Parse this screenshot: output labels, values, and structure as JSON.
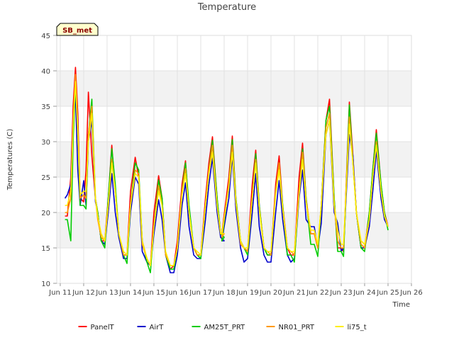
{
  "chart_data": {
    "type": "line",
    "title": "Temperature",
    "xlabel": "Time",
    "ylabel": "Temperatures (C)",
    "ylim": [
      10,
      45
    ],
    "yticks": [
      10,
      15,
      20,
      25,
      30,
      35,
      40,
      45
    ],
    "xlim": [
      10.85,
      26.0
    ],
    "xticks": [
      {
        "day": 11,
        "label": "Jun 11"
      },
      {
        "day": 12,
        "label": "Jun 12"
      },
      {
        "day": 13,
        "label": "Jun 13"
      },
      {
        "day": 14,
        "label": "Jun 14"
      },
      {
        "day": 15,
        "label": "Jun 15"
      },
      {
        "day": 16,
        "label": "Jun 16"
      },
      {
        "day": 17,
        "label": "Jun 17"
      },
      {
        "day": 18,
        "label": "Jun 18"
      },
      {
        "day": 19,
        "label": "Jun 19"
      },
      {
        "day": 20,
        "label": "Jun 20"
      },
      {
        "day": 21,
        "label": "Jun 21"
      },
      {
        "day": 22,
        "label": "Jun 22"
      },
      {
        "day": 23,
        "label": "Jun 23"
      },
      {
        "day": 24,
        "label": "Jun 24"
      },
      {
        "day": 25,
        "label": "Jun 25"
      },
      {
        "day": 26,
        "label": "Jun 26"
      }
    ],
    "badge": "SB_met",
    "grid": true,
    "legend_position": "bottom",
    "x": [
      11.2,
      11.3,
      11.45,
      11.55,
      11.65,
      11.75,
      11.85,
      12.0,
      12.1,
      12.2,
      12.35,
      12.5,
      12.6,
      12.75,
      12.9,
      13.05,
      13.2,
      13.35,
      13.5,
      13.7,
      13.85,
      14.0,
      14.2,
      14.35,
      14.5,
      14.7,
      14.85,
      15.0,
      15.2,
      15.35,
      15.5,
      15.7,
      15.85,
      16.0,
      16.2,
      16.35,
      16.5,
      16.7,
      16.85,
      17.0,
      17.2,
      17.35,
      17.5,
      17.7,
      17.85,
      18.0,
      17.9,
      18.2,
      18.35,
      18.5,
      18.7,
      18.85,
      19.0,
      19.2,
      19.35,
      19.5,
      19.7,
      19.85,
      20.0,
      20.2,
      20.35,
      20.5,
      20.7,
      20.85,
      21.0,
      21.2,
      21.35,
      21.5,
      21.7,
      21.85,
      22.0,
      22.15,
      22.35,
      22.5,
      22.7,
      22.85,
      23.0,
      23.1,
      23.35,
      23.5,
      23.65,
      23.85,
      24.0,
      24.2,
      24.35,
      24.5,
      24.7,
      24.85,
      25.0
    ],
    "series": [
      {
        "name": "PanelT",
        "color": "#ff0000",
        "values": [
          19.5,
          19.5,
          25,
          35,
          40.5,
          34,
          22,
          21.5,
          26,
          37,
          28,
          22,
          20,
          16,
          16,
          22,
          29.5,
          23,
          17,
          14,
          14,
          23,
          27.8,
          25,
          16,
          13.5,
          12.5,
          20,
          25.2,
          22,
          14,
          12,
          12.5,
          16,
          24,
          27.3,
          20,
          15,
          14,
          14,
          22,
          27,
          30.7,
          22,
          17,
          17,
          17,
          25,
          30.8,
          22,
          16,
          15,
          14.5,
          24,
          28.8,
          21,
          15,
          14,
          14,
          24,
          28,
          21,
          15,
          14,
          14,
          25,
          29.8,
          22,
          17,
          17,
          15,
          21,
          33,
          36,
          22,
          15,
          15,
          14.5,
          35.6,
          28,
          20,
          15,
          15,
          20,
          26,
          31.7,
          24,
          20,
          18
        ]
      },
      {
        "name": "AirT",
        "color": "#0000cc",
        "values": [
          22,
          22.5,
          24,
          33,
          36.5,
          26,
          21,
          24.5,
          21,
          30,
          33,
          21.5,
          20,
          16,
          15.5,
          20,
          25.5,
          20,
          16.5,
          13.5,
          13.5,
          20,
          25,
          24,
          14.5,
          13,
          12.5,
          17,
          21.8,
          19,
          14,
          11.5,
          11.5,
          14,
          21,
          24.2,
          18,
          14,
          13.5,
          13.5,
          19,
          24,
          27.7,
          20,
          16.5,
          16,
          16,
          22,
          28,
          20.5,
          15,
          13,
          13.5,
          20,
          25.5,
          18,
          14,
          13,
          13,
          20,
          24.5,
          19,
          14,
          13,
          13.5,
          22,
          26,
          19,
          18,
          18,
          15,
          18.5,
          31,
          33,
          20,
          18.5,
          14.5,
          15,
          31,
          28,
          20,
          15,
          15,
          18,
          23,
          28.8,
          22,
          19,
          18
        ]
      },
      {
        "name": "AM25T_PRT",
        "color": "#00cc00",
        "values": [
          19,
          19,
          16,
          30,
          38,
          32,
          21,
          21,
          20.5,
          31,
          36,
          22,
          20,
          16,
          15,
          22,
          29,
          24,
          17,
          14,
          12.8,
          21,
          27,
          26,
          16,
          13,
          11.5,
          18,
          24.6,
          22,
          14,
          12,
          12,
          15,
          23,
          27,
          21,
          15,
          14,
          13.5,
          21,
          26,
          30.2,
          22,
          17,
          16.5,
          16,
          24,
          30.3,
          22,
          16,
          15,
          14,
          22,
          28.3,
          21,
          15,
          14,
          14,
          23,
          27,
          21,
          14,
          14,
          13,
          23,
          29,
          22,
          15.5,
          15.5,
          13.8,
          21,
          33,
          35,
          22,
          14.5,
          14.5,
          13.8,
          35.2,
          27,
          20,
          15,
          14.5,
          20,
          26,
          31.2,
          24,
          20,
          17.5
        ]
      },
      {
        "name": "NR01_PRT",
        "color": "#ff9900",
        "values": [
          20,
          20,
          22,
          33,
          39.5,
          32,
          22,
          22.5,
          22,
          31,
          35,
          22,
          19,
          16.5,
          16,
          21,
          27.5,
          23,
          17,
          14,
          14,
          21,
          26,
          25.5,
          15.5,
          13.5,
          12.5,
          18,
          23.8,
          21,
          14,
          12.5,
          12.5,
          15,
          23,
          26.2,
          20,
          15,
          14,
          14,
          21,
          26,
          29.5,
          21,
          17,
          17,
          16.5,
          24,
          29.5,
          21.5,
          15.5,
          15,
          14.5,
          22,
          27.5,
          20.5,
          15,
          14.5,
          14,
          23,
          27,
          20.5,
          15,
          14.5,
          14,
          23,
          28.5,
          21.5,
          17,
          17,
          15,
          21,
          32,
          34,
          21,
          16,
          15,
          15,
          33.5,
          27,
          20,
          15.5,
          15,
          19,
          25,
          30,
          23,
          19.5,
          18
        ]
      },
      {
        "name": "li75_t",
        "color": "#ffee00",
        "values": [
          21,
          21,
          23,
          32,
          38.5,
          31,
          22.5,
          23,
          23,
          30,
          34,
          22,
          19.5,
          17,
          16,
          21,
          27,
          23,
          17,
          14.5,
          14,
          21,
          25.5,
          25,
          16,
          13.5,
          12.5,
          18,
          23,
          21,
          14.5,
          12.5,
          12.5,
          15,
          22.5,
          25.5,
          20,
          15,
          14.5,
          14,
          21,
          25.5,
          28.5,
          21,
          17,
          17,
          17,
          23.5,
          28.5,
          21.5,
          16,
          15,
          15,
          22,
          27,
          20.5,
          15,
          14.5,
          14.5,
          22.5,
          26,
          20.5,
          15,
          14.5,
          14.5,
          22.5,
          27.5,
          21.5,
          17.5,
          17.5,
          15.5,
          21,
          31,
          33,
          21,
          17.5,
          15.5,
          15.5,
          32.5,
          27,
          20,
          16,
          15.5,
          19,
          25,
          29.5,
          23,
          19.5,
          18
        ]
      }
    ]
  }
}
